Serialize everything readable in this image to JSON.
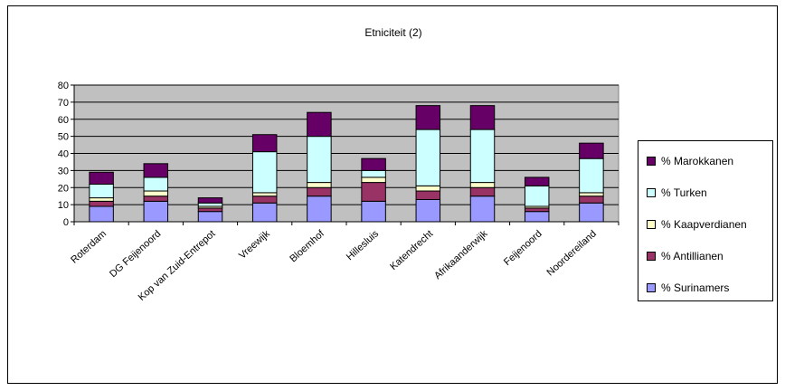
{
  "chart_data": {
    "type": "bar",
    "stacked": true,
    "title": "Etniciteit (2)",
    "categories": [
      "Roterdam",
      "DG Feijenoord",
      "Kop van Zuid-Entrepot",
      "Vreewijk",
      "Bloemhof",
      "Hillesluis",
      "Katendrecht",
      "Afrikaanderwijk",
      "Feijenoord",
      "Noordereiland"
    ],
    "ylim": [
      0,
      80
    ],
    "yticks": [
      0,
      10,
      20,
      30,
      40,
      50,
      60,
      70,
      80
    ],
    "grid": true,
    "legend_position": "right",
    "series": [
      {
        "name": "% Surinamers",
        "color": "#9999ff",
        "values": [
          9,
          12,
          6,
          11,
          15,
          12,
          13,
          15,
          6,
          11
        ]
      },
      {
        "name": "% Antillianen",
        "color": "#993366",
        "values": [
          3,
          3,
          2,
          4,
          5,
          11,
          5,
          5,
          2,
          4
        ]
      },
      {
        "name": "% Kaapverdianen",
        "color": "#ffffcc",
        "values": [
          2,
          3,
          1,
          2,
          3,
          3,
          3,
          3,
          1,
          2
        ]
      },
      {
        "name": "% Turken",
        "color": "#ccffff",
        "values": [
          8,
          8,
          2,
          24,
          27,
          4,
          33,
          31,
          12,
          20
        ]
      },
      {
        "name": "% Marokkanen",
        "color": "#660066",
        "values": [
          7,
          8,
          3,
          10,
          14,
          7,
          14,
          14,
          5,
          9
        ]
      }
    ]
  },
  "colors": {
    "plot_background": "#c0c0c0",
    "gridline": "#000000"
  }
}
